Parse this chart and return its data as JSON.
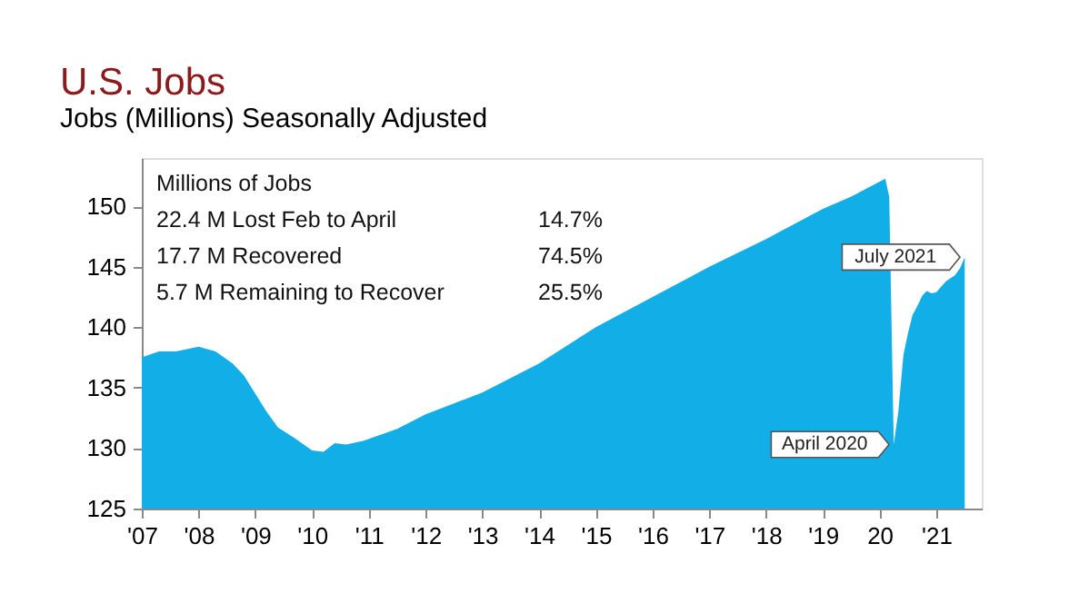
{
  "chart_data": {
    "type": "area",
    "title": "U.S. Jobs",
    "subtitle": "Jobs (Millions) Seasonally Adjusted",
    "x": [
      2007.0,
      2007.3,
      2007.6,
      2008.0,
      2008.3,
      2008.6,
      2008.8,
      2009.0,
      2009.2,
      2009.4,
      2009.7,
      2010.0,
      2010.2,
      2010.4,
      2010.6,
      2010.9,
      2011.5,
      2012.0,
      2012.5,
      2013.0,
      2014.0,
      2015.0,
      2016.0,
      2017.0,
      2018.0,
      2019.0,
      2019.5,
      2020.1,
      2020.17,
      2020.25,
      2020.33,
      2020.42,
      2020.5,
      2020.58,
      2020.67,
      2020.75,
      2020.83,
      2020.92,
      2021.0,
      2021.17,
      2021.33,
      2021.42,
      2021.5
    ],
    "series": [
      {
        "color": "#12aee8",
        "values": [
          137.5,
          138.0,
          138.0,
          138.4,
          138.0,
          137.0,
          136.0,
          134.5,
          133.0,
          131.7,
          130.8,
          129.8,
          129.7,
          130.4,
          130.3,
          130.6,
          131.6,
          132.8,
          133.7,
          134.6,
          137.0,
          140.0,
          142.5,
          145.0,
          147.3,
          149.8,
          150.8,
          152.3,
          150.8,
          130.3,
          133.0,
          137.7,
          139.5,
          141.0,
          141.8,
          142.6,
          143.0,
          142.8,
          142.9,
          143.8,
          144.3,
          144.9,
          145.8
        ]
      }
    ],
    "xlim": [
      2007,
      2021.8
    ],
    "ylim": [
      125,
      154
    ],
    "xticks": [
      {
        "value": 2007,
        "label": "'07"
      },
      {
        "value": 2008,
        "label": "'08"
      },
      {
        "value": 2009,
        "label": "'09"
      },
      {
        "value": 2010,
        "label": "'10"
      },
      {
        "value": 2011,
        "label": "'11"
      },
      {
        "value": 2012,
        "label": "'12"
      },
      {
        "value": 2013,
        "label": "'13"
      },
      {
        "value": 2014,
        "label": "'14"
      },
      {
        "value": 2015,
        "label": "'15"
      },
      {
        "value": 2016,
        "label": "'16"
      },
      {
        "value": 2017,
        "label": "'17"
      },
      {
        "value": 2018,
        "label": "'18"
      },
      {
        "value": 2019,
        "label": "'19"
      },
      {
        "value": 2020,
        "label": "20"
      },
      {
        "value": 2021,
        "label": "'21"
      }
    ],
    "yticks": [
      125,
      130,
      135,
      140,
      145,
      150
    ],
    "grid": false,
    "annotations": [
      "Millions of Jobs",
      "22.4 M Lost Feb to April",
      "14.7%",
      "17.7 M Recovered",
      "74.5%",
      "5.7 M  Remaining to Recover",
      "25.5%",
      {
        "text": "April 2020",
        "x": 2020.25,
        "y": 130.3
      },
      {
        "text": "July 2021",
        "x": 2021.5,
        "y": 145.8
      }
    ]
  }
}
